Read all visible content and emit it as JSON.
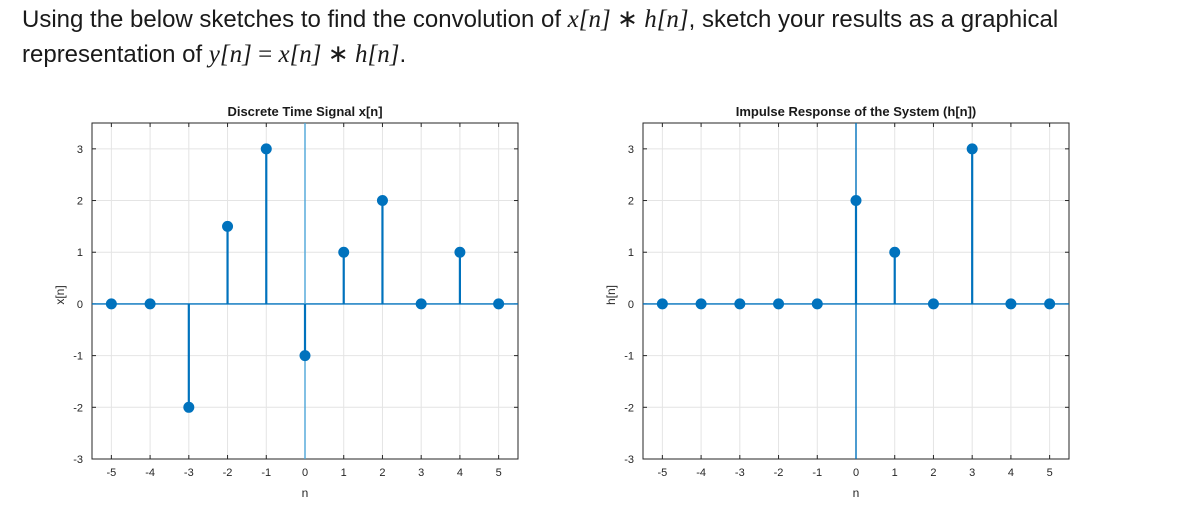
{
  "prompt": {
    "line1_prefix": "Using the below sketches to find the convolution of ",
    "line1_expr_x": "x[n]",
    "line1_op": " ∗ ",
    "line1_expr_h": "h[n]",
    "line1_suffix": ", sketch your results as a graphical",
    "line2_prefix": "representation of ",
    "line2_expr_y": "y[n]",
    "line2_eq": " = ",
    "line2_expr_x": "x[n]",
    "line2_op": " ∗ ",
    "line2_expr_h": "h[n]",
    "line2_suffix": "."
  },
  "chart_data": [
    {
      "type": "stem",
      "title": "Discrete Time Signal  x[n]",
      "xlabel": "n",
      "ylabel": "x[n]",
      "x": [
        -5,
        -4,
        -3,
        -2,
        -1,
        0,
        1,
        2,
        3,
        4,
        5
      ],
      "values": [
        0,
        0,
        -2,
        1.5,
        3,
        -1,
        1,
        2,
        0,
        1,
        0
      ],
      "xlim": [
        -5.5,
        5.5
      ],
      "ylim": [
        -3,
        3.5
      ],
      "xticks": [
        -5,
        -4,
        -3,
        -2,
        -1,
        0,
        1,
        2,
        3,
        4,
        5
      ],
      "yticks": [
        -3,
        -2,
        -1,
        0,
        1,
        2,
        3
      ],
      "grid": true,
      "color": "#0072BD",
      "axis_line_color": "#4da6d8"
    },
    {
      "type": "stem",
      "title": "Impulse Response of the System  (h[n])",
      "xlabel": "n",
      "ylabel": "h[n]",
      "x": [
        -5,
        -4,
        -3,
        -2,
        -1,
        0,
        1,
        2,
        3,
        4,
        5
      ],
      "values": [
        0,
        0,
        0,
        0,
        0,
        2,
        1,
        0,
        3,
        0,
        0
      ],
      "xlim": [
        -5.5,
        5.5
      ],
      "ylim": [
        -3,
        3.5
      ],
      "xticks": [
        -5,
        -4,
        -3,
        -2,
        -1,
        0,
        1,
        2,
        3,
        4,
        5
      ],
      "yticks": [
        -3,
        -2,
        -1,
        0,
        1,
        2,
        3
      ],
      "grid": true,
      "color": "#0072BD",
      "axis_line_color": "#0072BD"
    }
  ]
}
